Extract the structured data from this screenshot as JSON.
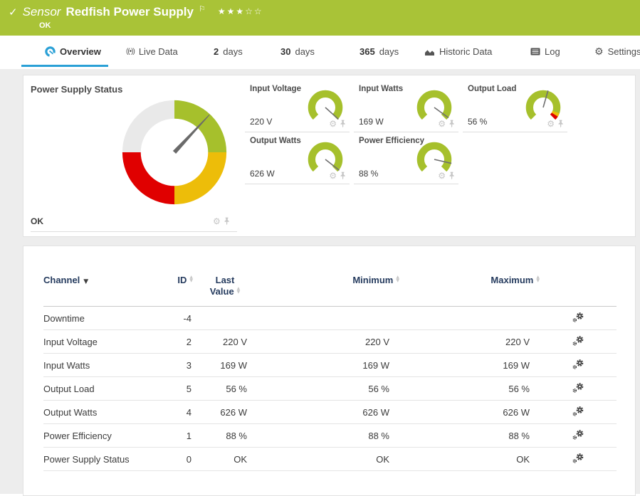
{
  "header": {
    "check": "✓",
    "kind": "Sensor",
    "name": "Redfish Power Supply",
    "flag": "⚐",
    "stars_filled": "★★★",
    "stars_empty": "☆☆",
    "status": "OK"
  },
  "tabs": [
    {
      "label": "Overview",
      "icon": "gauge-icon",
      "active": true
    },
    {
      "label": "Live Data",
      "icon": "broadcast-icon",
      "icon_text": "((•))"
    },
    {
      "num": "2",
      "label": "days"
    },
    {
      "num": "30",
      "label": "days"
    },
    {
      "num": "365",
      "label": "days"
    },
    {
      "label": "Historic Data",
      "icon": "area-chart-icon"
    },
    {
      "label": "Log",
      "icon": "log-icon"
    },
    {
      "label": "Settings",
      "icon": "gear-icon",
      "icon_text": "⚙"
    }
  ],
  "gauges": {
    "main": {
      "title": "Power Supply Status",
      "value": "OK",
      "needle_rotate": -47,
      "segments": [
        "ok-green",
        "warning-yellow",
        "error-red",
        "none-gray"
      ]
    },
    "mini": [
      {
        "title": "Input Voltage",
        "value": "220 V",
        "needle_rotate": 42
      },
      {
        "title": "Input Watts",
        "value": "169 W",
        "needle_rotate": 36
      },
      {
        "title": "Output Load",
        "value": "56 %",
        "needle_rotate": -74
      },
      {
        "title": "Output Watts",
        "value": "626 W",
        "needle_rotate": 38
      },
      {
        "title": "Power Efficiency",
        "value": "88 %",
        "needle_rotate": 13
      }
    ]
  },
  "table": {
    "columns": {
      "channel": "Channel",
      "id": "ID",
      "last1": "Last",
      "last2": "Value",
      "min": "Minimum",
      "max": "Maximum"
    },
    "rows": [
      {
        "channel": "Downtime",
        "id": "-4",
        "last": "",
        "min": "",
        "max": ""
      },
      {
        "channel": "Input Voltage",
        "id": "2",
        "last": "220 V",
        "min": "220 V",
        "max": "220 V"
      },
      {
        "channel": "Input Watts",
        "id": "3",
        "last": "169 W",
        "min": "169 W",
        "max": "169 W"
      },
      {
        "channel": "Output Load",
        "id": "5",
        "last": "56 %",
        "min": "56 %",
        "max": "56 %"
      },
      {
        "channel": "Output Watts",
        "id": "4",
        "last": "626 W",
        "min": "626 W",
        "max": "626 W"
      },
      {
        "channel": "Power Efficiency",
        "id": "1",
        "last": "88 %",
        "min": "88 %",
        "max": "88 %"
      },
      {
        "channel": "Power Supply Status",
        "id": "0",
        "last": "OK",
        "min": "OK",
        "max": "OK"
      }
    ]
  },
  "colors": {
    "header_green": "#a9c337",
    "gauge_green": "#a6c02c",
    "gauge_yellow": "#edbd09",
    "gauge_red": "#e00000",
    "gauge_gray": "#e9e9e9",
    "accent_blue": "#2aa0d6",
    "table_header_text": "#253b5e"
  }
}
